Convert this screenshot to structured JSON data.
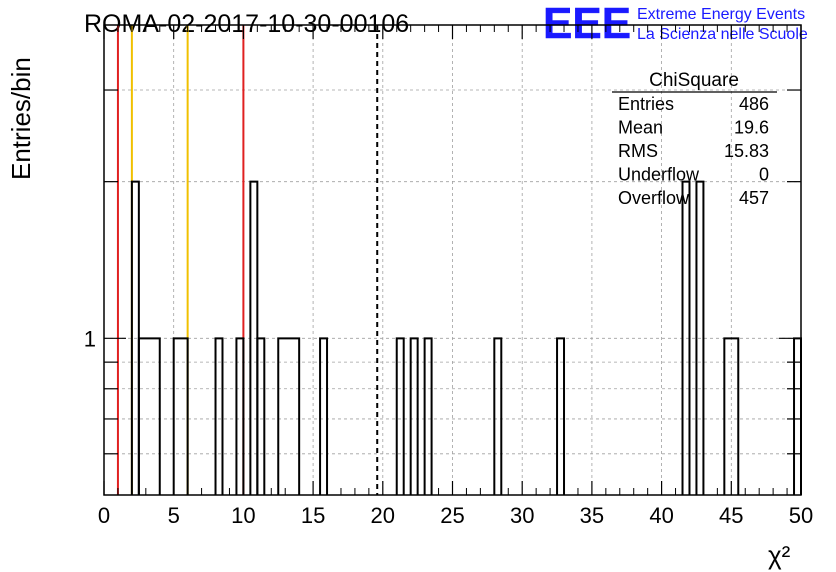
{
  "header": {
    "title": "ROMA-02-2017-10-30-00106",
    "logo_letters": "EEE",
    "logo_line1": "Extreme Energy Events",
    "logo_line2": "La Scienza nelle Scuole"
  },
  "stats_box": {
    "title": "ChiSquare",
    "rows": [
      {
        "label": "Entries",
        "value": "486"
      },
      {
        "label": "Mean",
        "value": "19.6"
      },
      {
        "label": "RMS",
        "value": "15.83"
      },
      {
        "label": "Underflow",
        "value": "0"
      },
      {
        "label": "Overflow",
        "value": "457"
      }
    ]
  },
  "chart_data": {
    "type": "histogram",
    "title": "ROMA-02-2017-10-30-00106",
    "xlabel": "χ²",
    "ylabel": "Entries/bin",
    "xlim": [
      0,
      50
    ],
    "ylim": [
      0.5,
      4
    ],
    "y_scale": "log",
    "grid": true,
    "bin_width": 0.5,
    "x_ticks": [
      0,
      5,
      10,
      15,
      20,
      25,
      30,
      35,
      40,
      45,
      50
    ],
    "x_tick_labels": [
      "0",
      "5",
      "10",
      "15",
      "20",
      "25",
      "30",
      "35",
      "40",
      "45",
      "50"
    ],
    "y_tick_labels": [
      {
        "value": 1,
        "label": "1"
      }
    ],
    "bins": [
      {
        "x0": 2.0,
        "x1": 2.5,
        "count": 2
      },
      {
        "x0": 2.5,
        "x1": 4.0,
        "count": 1
      },
      {
        "x0": 5.0,
        "x1": 6.0,
        "count": 1
      },
      {
        "x0": 8.0,
        "x1": 8.5,
        "count": 1
      },
      {
        "x0": 9.5,
        "x1": 10.0,
        "count": 1
      },
      {
        "x0": 10.5,
        "x1": 11.0,
        "count": 2
      },
      {
        "x0": 11.0,
        "x1": 11.5,
        "count": 1
      },
      {
        "x0": 12.5,
        "x1": 14.0,
        "count": 1
      },
      {
        "x0": 15.5,
        "x1": 16.0,
        "count": 1
      },
      {
        "x0": 21.0,
        "x1": 21.5,
        "count": 1
      },
      {
        "x0": 22.0,
        "x1": 22.5,
        "count": 1
      },
      {
        "x0": 23.0,
        "x1": 23.5,
        "count": 1
      },
      {
        "x0": 28.0,
        "x1": 28.5,
        "count": 1
      },
      {
        "x0": 32.5,
        "x1": 33.0,
        "count": 1
      },
      {
        "x0": 41.5,
        "x1": 42.0,
        "count": 2
      },
      {
        "x0": 42.5,
        "x1": 43.0,
        "count": 2
      },
      {
        "x0": 44.5,
        "x1": 45.5,
        "count": 1
      },
      {
        "x0": 49.5,
        "x1": 50.0,
        "count": 1
      }
    ],
    "vertical_lines": [
      {
        "x": 1,
        "color": "#e02020",
        "style": "solid"
      },
      {
        "x": 2,
        "color": "#f0c000",
        "style": "solid"
      },
      {
        "x": 6,
        "color": "#f0c000",
        "style": "solid"
      },
      {
        "x": 10,
        "color": "#e02020",
        "style": "solid"
      },
      {
        "x": 19.6,
        "color": "#000000",
        "style": "dashed"
      }
    ],
    "colors": {
      "histogram": "#000000",
      "grid": "#a0a0a0",
      "logo": "#1a1aff"
    }
  }
}
